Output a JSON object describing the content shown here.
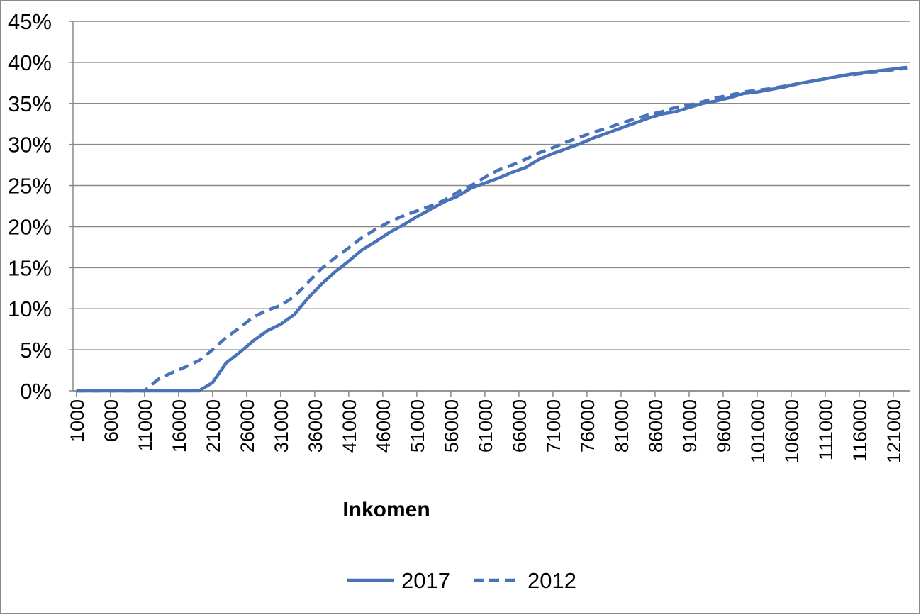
{
  "chart_data": {
    "type": "line",
    "x_label": "Inkomen",
    "x": [
      1000,
      3000,
      5000,
      7000,
      9000,
      11000,
      13000,
      15000,
      17000,
      19000,
      21000,
      23000,
      25000,
      27000,
      29000,
      31000,
      33000,
      35000,
      37000,
      39000,
      41000,
      43000,
      45000,
      47000,
      49000,
      51000,
      53000,
      55000,
      57000,
      59000,
      61000,
      63000,
      65000,
      67000,
      69000,
      71000,
      73000,
      75000,
      77000,
      79000,
      81000,
      83000,
      85000,
      87000,
      89000,
      91000,
      93000,
      95000,
      97000,
      99000,
      101000,
      103000,
      105000,
      107000,
      109000,
      111000,
      113000,
      115000,
      117000,
      119000,
      121000,
      123000
    ],
    "series": [
      {
        "name": "2017",
        "color": "#4a72b8",
        "line_style": "solid",
        "values": [
          0,
          0,
          0,
          0,
          0,
          0,
          0,
          0,
          0,
          0,
          1.0,
          3.4,
          4.7,
          6.1,
          7.3,
          8.1,
          9.3,
          11.3,
          13.0,
          14.5,
          15.8,
          17.2,
          18.2,
          19.3,
          20.2,
          21.2,
          22.1,
          23.0,
          23.7,
          24.7,
          25.3,
          25.9,
          26.6,
          27.2,
          28.2,
          28.9,
          29.5,
          30.1,
          30.8,
          31.4,
          32.0,
          32.6,
          33.2,
          33.7,
          34.0,
          34.5,
          35.0,
          35.3,
          35.7,
          36.2,
          36.4,
          36.7,
          37.0,
          37.4,
          37.7,
          38.0,
          38.3,
          38.6,
          38.8,
          39.0,
          39.2,
          39.4
        ]
      },
      {
        "name": "2012",
        "color": "#4a72b8",
        "line_style": "dashed",
        "values": [
          0,
          0,
          0,
          0,
          0,
          0,
          1.4,
          2.2,
          2.9,
          3.7,
          5.0,
          6.5,
          7.7,
          9.0,
          9.8,
          10.4,
          11.5,
          13.2,
          14.9,
          16.2,
          17.4,
          18.7,
          19.7,
          20.6,
          21.3,
          21.9,
          22.5,
          23.2,
          24.2,
          25.0,
          26.0,
          26.9,
          27.5,
          28.2,
          29.0,
          29.6,
          30.3,
          30.9,
          31.5,
          32.0,
          32.6,
          33.1,
          33.6,
          34.0,
          34.5,
          34.8,
          35.2,
          35.7,
          36.0,
          36.4,
          36.6,
          36.8,
          37.1,
          37.4,
          37.7,
          38.0,
          38.3,
          38.5,
          38.7,
          38.9,
          39.1,
          39.3
        ]
      }
    ],
    "xlim": [
      500,
      123500
    ],
    "xticks": [
      1000,
      6000,
      11000,
      16000,
      21000,
      26000,
      31000,
      36000,
      41000,
      46000,
      51000,
      56000,
      61000,
      66000,
      71000,
      76000,
      81000,
      86000,
      91000,
      96000,
      101000,
      106000,
      111000,
      116000,
      121000
    ],
    "ylim": [
      0,
      45
    ],
    "yticks": [
      {
        "value": 0,
        "label": "0%"
      },
      {
        "value": 5,
        "label": "5%"
      },
      {
        "value": 10,
        "label": "10%"
      },
      {
        "value": 15,
        "label": "15%"
      },
      {
        "value": 20,
        "label": "20%"
      },
      {
        "value": 25,
        "label": "25%"
      },
      {
        "value": 30,
        "label": "30%"
      },
      {
        "value": 35,
        "label": "35%"
      },
      {
        "value": 40,
        "label": "40%"
      },
      {
        "value": 45,
        "label": "45%"
      }
    ],
    "grid": true,
    "legend": "bottom"
  }
}
